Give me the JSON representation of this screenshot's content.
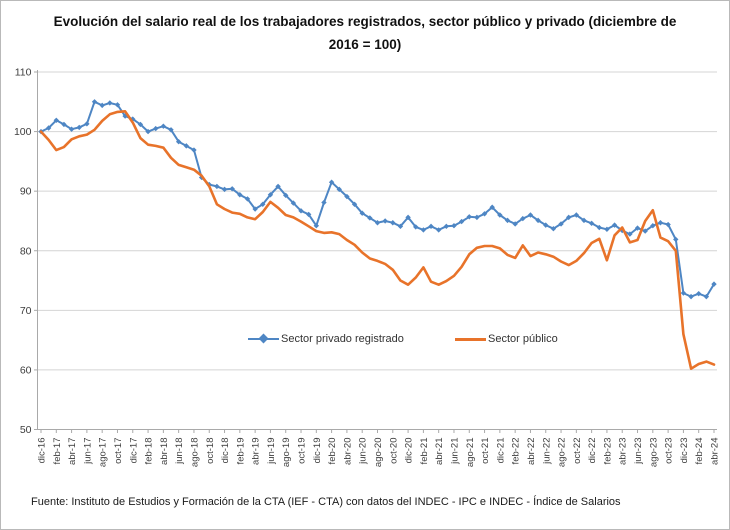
{
  "title": "Evolución del salario real de los trabajadores registrados, sector público y privado (diciembre de 2016 = 100)",
  "footer": "Fuente: Instituto de Estudios y Formación de la CTA (IEF - CTA) con datos del INDEC - IPC e INDEC - Índice de Salarios",
  "legend": {
    "privado_label": "Sector privado registrado",
    "publico_label": "Sector público"
  },
  "colors": {
    "privado": "#4E86C4",
    "publico": "#E8732A",
    "gridline": "#D4D4D4",
    "axis": "#A9A9A9",
    "tick_text": "#3D3D3D"
  },
  "chart_data": {
    "type": "line",
    "title": "Evolución del salario real de los trabajadores registrados, sector público y privado (diciembre de 2016 = 100)",
    "xlabel": "",
    "ylabel": "",
    "ylim": [
      50,
      110
    ],
    "yticks": [
      110,
      100,
      90,
      80,
      70,
      60,
      50
    ],
    "grid": true,
    "legend_position": "inside-bottom-center",
    "x_tick_labels": [
      "dic-16",
      "feb-17",
      "abr-17",
      "jun-17",
      "ago-17",
      "oct-17",
      "dic-17",
      "feb-18",
      "abr-18",
      "jun-18",
      "ago-18",
      "oct-18",
      "dic-18",
      "feb-19",
      "abr-19",
      "jun-19",
      "ago-19",
      "oct-19",
      "dic-19",
      "feb-20",
      "abr-20",
      "jun-20",
      "ago-20",
      "oct-20",
      "dic-20",
      "feb-21",
      "abr-21",
      "jun-21",
      "ago-21",
      "oct-21",
      "dic-21",
      "feb-22",
      "abr-22",
      "jun-22",
      "ago-22",
      "oct-22",
      "dic-22",
      "feb-23",
      "abr-23",
      "jun-23",
      "ago-23",
      "oct-23",
      "dic-23",
      "feb-24",
      "abr-24"
    ],
    "categories": [
      "dic-16",
      "ene-17",
      "feb-17",
      "mar-17",
      "abr-17",
      "may-17",
      "jun-17",
      "jul-17",
      "ago-17",
      "sep-17",
      "oct-17",
      "nov-17",
      "dic-17",
      "ene-18",
      "feb-18",
      "mar-18",
      "abr-18",
      "may-18",
      "jun-18",
      "jul-18",
      "ago-18",
      "sep-18",
      "oct-18",
      "nov-18",
      "dic-18",
      "ene-19",
      "feb-19",
      "mar-19",
      "abr-19",
      "may-19",
      "jun-19",
      "jul-19",
      "ago-19",
      "sep-19",
      "oct-19",
      "nov-19",
      "dic-19",
      "ene-20",
      "feb-20",
      "mar-20",
      "abr-20",
      "may-20",
      "jun-20",
      "jul-20",
      "ago-20",
      "sep-20",
      "oct-20",
      "nov-20",
      "dic-20",
      "ene-21",
      "feb-21",
      "mar-21",
      "abr-21",
      "may-21",
      "jun-21",
      "jul-21",
      "ago-21",
      "sep-21",
      "oct-21",
      "nov-21",
      "dic-21",
      "ene-22",
      "feb-22",
      "mar-22",
      "abr-22",
      "may-22",
      "jun-22",
      "jul-22",
      "ago-22",
      "sep-22",
      "oct-22",
      "nov-22",
      "dic-22",
      "ene-23",
      "feb-23",
      "mar-23",
      "abr-23",
      "may-23",
      "jun-23",
      "jul-23",
      "ago-23",
      "sep-23",
      "oct-23",
      "nov-23",
      "dic-23",
      "ene-24",
      "feb-24",
      "mar-24",
      "abr-24"
    ],
    "series": [
      {
        "id": "privado",
        "name": "Sector privado registrado",
        "color": "#4E86C4",
        "marker": "diamond",
        "width": 2,
        "values": [
          100.0,
          100.6,
          101.9,
          101.2,
          100.4,
          100.7,
          101.3,
          105.0,
          104.4,
          104.8,
          104.5,
          102.6,
          102.1,
          101.2,
          100.0,
          100.5,
          100.9,
          100.3,
          98.3,
          97.6,
          96.9,
          92.3,
          91.1,
          90.8,
          90.3,
          90.4,
          89.4,
          88.7,
          87.0,
          87.8,
          89.4,
          90.8,
          89.3,
          88.0,
          86.7,
          86.1,
          84.2,
          88.1,
          91.5,
          90.3,
          89.1,
          87.8,
          86.3,
          85.5,
          84.7,
          85.0,
          84.7,
          84.1,
          85.6,
          84.0,
          83.5,
          84.1,
          83.5,
          84.1,
          84.2,
          84.9,
          85.7,
          85.6,
          86.2,
          87.3,
          86.0,
          85.1,
          84.5,
          85.4,
          86.0,
          85.1,
          84.3,
          83.7,
          84.5,
          85.6,
          86.0,
          85.1,
          84.6,
          83.9,
          83.6,
          84.3,
          83.4,
          82.8,
          83.8,
          83.3,
          84.2,
          84.7,
          84.4,
          81.9,
          72.9,
          72.3,
          72.8,
          72.3,
          74.4
        ]
      },
      {
        "id": "publico",
        "name": "Sector público",
        "color": "#E8732A",
        "marker": "none",
        "width": 2.6,
        "values": [
          100.0,
          98.6,
          96.9,
          97.4,
          98.7,
          99.2,
          99.5,
          100.3,
          101.8,
          102.9,
          103.3,
          103.4,
          101.5,
          98.9,
          97.8,
          97.6,
          97.3,
          95.6,
          94.4,
          94.0,
          93.6,
          92.6,
          90.8,
          87.8,
          87.0,
          86.4,
          86.2,
          85.6,
          85.3,
          86.5,
          88.2,
          87.2,
          86.0,
          85.6,
          84.9,
          84.1,
          83.3,
          83.0,
          83.1,
          82.8,
          81.8,
          81.0,
          79.7,
          78.7,
          78.3,
          77.8,
          76.8,
          75.0,
          74.3,
          75.5,
          77.2,
          74.8,
          74.3,
          74.9,
          75.8,
          77.3,
          79.4,
          80.5,
          80.8,
          80.8,
          80.4,
          79.3,
          78.8,
          80.9,
          79.1,
          79.7,
          79.4,
          79.0,
          78.2,
          77.6,
          78.3,
          79.6,
          81.3,
          82.0,
          78.4,
          82.6,
          83.9,
          81.4,
          81.8,
          85.0,
          86.8,
          82.2,
          81.6,
          80.0,
          66.0,
          60.2,
          61.0,
          61.4,
          60.9
        ]
      }
    ]
  }
}
